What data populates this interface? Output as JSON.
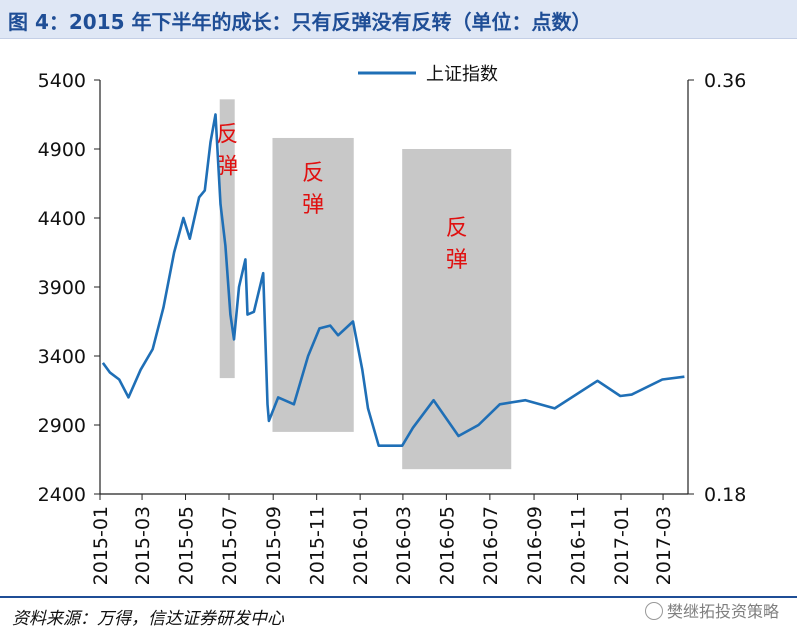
{
  "title": "图 4：2015 年下半年的成长：只有反弹没有反转（单位：点数）",
  "source": "资料来源：万得，信达证券研发中心",
  "watermark": "樊继拓投资策略",
  "colors": {
    "line": "#1f6fb6",
    "shade": "#c8c8c8",
    "annotation": "#e01010",
    "title": "#1f4e96"
  },
  "chart_data": {
    "type": "line",
    "title": "",
    "xlabel": "",
    "ylabel": "",
    "legend": {
      "entries": [
        "上证指数"
      ],
      "placement": "top-center"
    },
    "grid": false,
    "x_tick_labels": [
      "2015-01",
      "2015-03",
      "2015-05",
      "2015-07",
      "2015-09",
      "2015-11",
      "2016-01",
      "2016-03",
      "2016-05",
      "2016-07",
      "2016-09",
      "2016-11",
      "2017-01",
      "2017-03"
    ],
    "ylim": [
      2400,
      5400
    ],
    "y_ticks": [
      2400,
      2900,
      3400,
      3900,
      4400,
      4900,
      5400
    ],
    "y2lim": [
      0.18,
      0.36
    ],
    "y2_ticks": [
      "0.18",
      "0.36"
    ],
    "series": [
      {
        "name": "上证指数",
        "x": [
          "2015-01-05",
          "2015-01-15",
          "2015-01-28",
          "2015-02-10",
          "2015-02-27",
          "2015-03-16",
          "2015-03-31",
          "2015-04-15",
          "2015-04-28",
          "2015-05-07",
          "2015-05-20",
          "2015-05-28",
          "2015-06-05",
          "2015-06-12",
          "2015-06-19",
          "2015-06-26",
          "2015-07-03",
          "2015-07-08",
          "2015-07-15",
          "2015-07-24",
          "2015-07-27",
          "2015-08-05",
          "2015-08-18",
          "2015-08-24",
          "2015-08-26",
          "2015-09-08",
          "2015-09-30",
          "2015-10-20",
          "2015-11-05",
          "2015-11-20",
          "2015-12-01",
          "2015-12-22",
          "2016-01-04",
          "2016-01-12",
          "2016-01-27",
          "2016-02-29",
          "2016-03-15",
          "2016-04-13",
          "2016-05-18",
          "2016-06-15",
          "2016-07-15",
          "2016-08-20",
          "2016-09-30",
          "2016-11-29",
          "2016-12-31",
          "2017-01-16",
          "2017-02-28",
          "2017-03-31"
        ],
        "values": [
          3350,
          3280,
          3230,
          3100,
          3300,
          3450,
          3750,
          4150,
          4400,
          4250,
          4550,
          4600,
          4950,
          5150,
          4500,
          4200,
          3700,
          3520,
          3900,
          4100,
          3700,
          3720,
          4000,
          3050,
          2930,
          3100,
          3050,
          3400,
          3600,
          3620,
          3550,
          3650,
          3300,
          3020,
          2750,
          2750,
          2880,
          3080,
          2820,
          2900,
          3050,
          3080,
          3020,
          3220,
          3110,
          3120,
          3230,
          3250
        ]
      }
    ],
    "shaded_regions": [
      {
        "start": "2015-06-18",
        "end": "2015-07-09",
        "y_top": 5260,
        "y_bottom": 3240,
        "label": "反弹"
      },
      {
        "start": "2015-08-31",
        "end": "2015-12-23",
        "y_top": 4980,
        "y_bottom": 2850,
        "label": "反弹"
      },
      {
        "start": "2016-02-29",
        "end": "2016-07-31",
        "y_top": 4900,
        "y_bottom": 2580,
        "label": "反弹"
      }
    ]
  }
}
